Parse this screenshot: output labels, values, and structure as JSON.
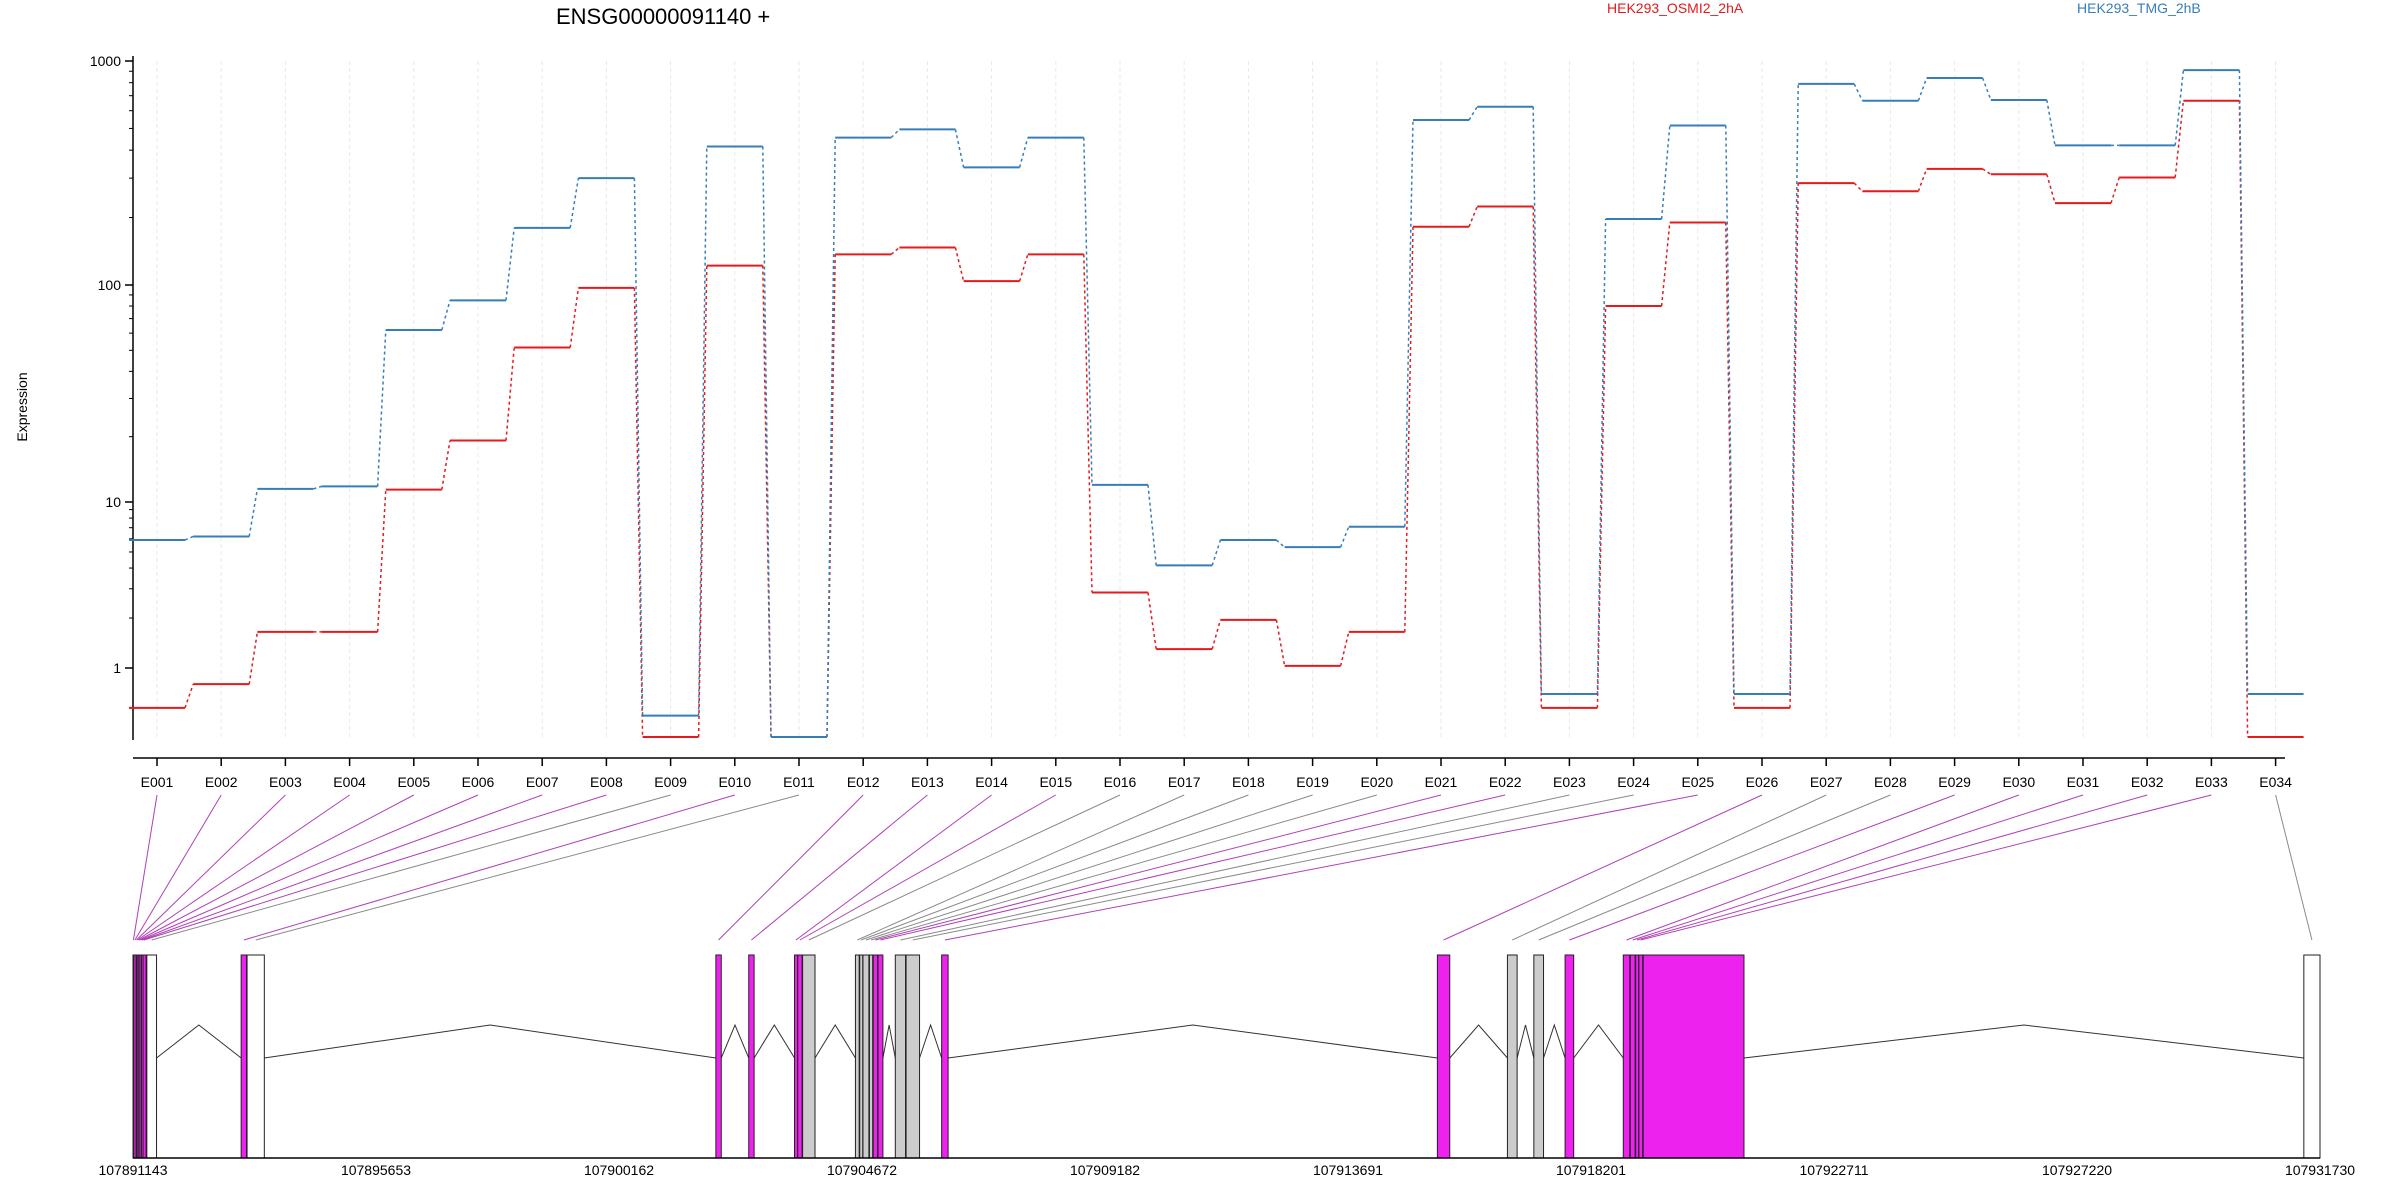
{
  "chart_data": {
    "type": "line",
    "title": "ENSG00000091140 +",
    "ylabel": "Expression",
    "yscale": "log",
    "ylim": [
      0.5,
      1000
    ],
    "yticks": [
      {
        "value": 1,
        "label": "1"
      },
      {
        "value": 10,
        "label": "10"
      },
      {
        "value": 100,
        "label": "100"
      },
      {
        "value": 1000,
        "label": "1000"
      }
    ],
    "categories": [
      "E001",
      "E002",
      "E003",
      "E004",
      "E005",
      "E006",
      "E007",
      "E008",
      "E009",
      "E010",
      "E011",
      "E012",
      "E013",
      "E014",
      "E015",
      "E016",
      "E017",
      "E018",
      "E019",
      "E020",
      "E021",
      "E022",
      "E023",
      "E024",
      "E025",
      "E026",
      "E027",
      "E028",
      "E029",
      "E030",
      "E031",
      "E032",
      "E033",
      "E034"
    ],
    "series": [
      {
        "name": "HEK293_OSMI2_2hA",
        "color": "#e41a1c",
        "values": [
          0.67,
          0.85,
          1.65,
          1.65,
          11.4,
          19.2,
          51.5,
          97,
          0.5,
          122,
          0.5,
          137,
          147,
          104,
          137,
          2.85,
          1.3,
          1.95,
          1.03,
          1.65,
          182,
          224,
          0.67,
          80,
          190,
          0.67,
          285,
          262,
          330,
          312,
          232,
          302,
          665,
          0.5
        ]
      },
      {
        "name": "HEK293_TMG_2hB",
        "color": "#377eb8",
        "values": [
          5.9,
          6.2,
          11.5,
          11.8,
          62,
          85,
          180,
          300,
          0.62,
          415,
          0.5,
          455,
          495,
          335,
          455,
          12,
          4.15,
          5.9,
          5.35,
          7.1,
          545,
          625,
          0.77,
          197,
          515,
          0.77,
          790,
          665,
          840,
          670,
          420,
          420,
          910,
          0.77
        ]
      }
    ],
    "legend_placement": "top",
    "genomic_axis": {
      "start": 107891143,
      "end": 107931730,
      "tick_labels": [
        "107891143",
        "107895653",
        "107900162",
        "107904672",
        "107909182",
        "107913691",
        "107918201",
        "107922711",
        "107927220",
        "107931730"
      ]
    },
    "exons": [
      {
        "id": "E001",
        "start": 107891143,
        "end": 107891158,
        "color": "#ee22ee"
      },
      {
        "id": "E002",
        "start": 107891158,
        "end": 107891200,
        "color": "#ee22ee"
      },
      {
        "id": "E003",
        "start": 107891200,
        "end": 107891215,
        "color": "#ee22ee"
      },
      {
        "id": "E004",
        "start": 107891215,
        "end": 107891240,
        "color": "#ee22ee"
      },
      {
        "id": "E005",
        "start": 107891240,
        "end": 107891270,
        "color": "#ee22ee"
      },
      {
        "id": "E006",
        "start": 107891270,
        "end": 107891300,
        "color": "#ee22ee"
      },
      {
        "id": "E007",
        "start": 107891300,
        "end": 107891330,
        "color": "#ee22ee"
      },
      {
        "id": "E008",
        "start": 107891330,
        "end": 107891360,
        "color": "#ee22ee"
      },
      {
        "id": "E009",
        "start": 107891400,
        "end": 107891580,
        "color": "#ffffff"
      },
      {
        "id": "E010",
        "start": 107893150,
        "end": 107893250,
        "color": "#ee22ee"
      },
      {
        "id": "E011",
        "start": 107893260,
        "end": 107893580,
        "color": "#ffffff"
      },
      {
        "id": "E012",
        "start": 107901960,
        "end": 107902060,
        "color": "#ee22ee"
      },
      {
        "id": "E013",
        "start": 107902570,
        "end": 107902670,
        "color": "#ee22ee"
      },
      {
        "id": "E014",
        "start": 107903420,
        "end": 107903470,
        "color": "#ee22ee"
      },
      {
        "id": "E015",
        "start": 107903480,
        "end": 107903560,
        "color": "#ee22ee"
      },
      {
        "id": "E016",
        "start": 107903570,
        "end": 107903800,
        "color": "#cccccc"
      },
      {
        "id": "E017",
        "start": 107904550,
        "end": 107904620,
        "color": "#cccccc"
      },
      {
        "id": "E018",
        "start": 107904630,
        "end": 107904680,
        "color": "#cccccc"
      },
      {
        "id": "E019",
        "start": 107904690,
        "end": 107904800,
        "color": "#cccccc"
      },
      {
        "id": "E020",
        "start": 107904810,
        "end": 107904870,
        "color": "#cccccc"
      },
      {
        "id": "E021",
        "start": 107904880,
        "end": 107904960,
        "color": "#ee22ee"
      },
      {
        "id": "E022",
        "start": 107904970,
        "end": 107905060,
        "color": "#ee22ee"
      },
      {
        "id": "E023",
        "start": 107905290,
        "end": 107905480,
        "color": "#cccccc"
      },
      {
        "id": "E024",
        "start": 107905490,
        "end": 107905740,
        "color": "#cccccc"
      },
      {
        "id": "E025",
        "start": 107906150,
        "end": 107906270,
        "color": "#ee22ee"
      },
      {
        "id": "E026",
        "start": 107915350,
        "end": 107915580,
        "color": "#ee22ee"
      },
      {
        "id": "E027",
        "start": 107916650,
        "end": 107916830,
        "color": "#cccccc"
      },
      {
        "id": "E028",
        "start": 107917140,
        "end": 107917320,
        "color": "#cccccc"
      },
      {
        "id": "E029",
        "start": 107917720,
        "end": 107917880,
        "color": "#ee22ee"
      },
      {
        "id": "E030",
        "start": 107918800,
        "end": 107918920,
        "color": "#ee22ee"
      },
      {
        "id": "E031",
        "start": 107918930,
        "end": 107919020,
        "color": "#ee22ee"
      },
      {
        "id": "E032",
        "start": 107919030,
        "end": 107919080,
        "color": "#ee22ee"
      },
      {
        "id": "E033",
        "start": 107919090,
        "end": 107919160,
        "color": "#ee22ee"
      },
      {
        "id": "E034",
        "start": 107919170,
        "end": 107921040,
        "color": "#ee22ee"
      },
      {
        "id": "E035",
        "start": 107931430,
        "end": 107931730,
        "color": "#ffffff"
      }
    ]
  }
}
